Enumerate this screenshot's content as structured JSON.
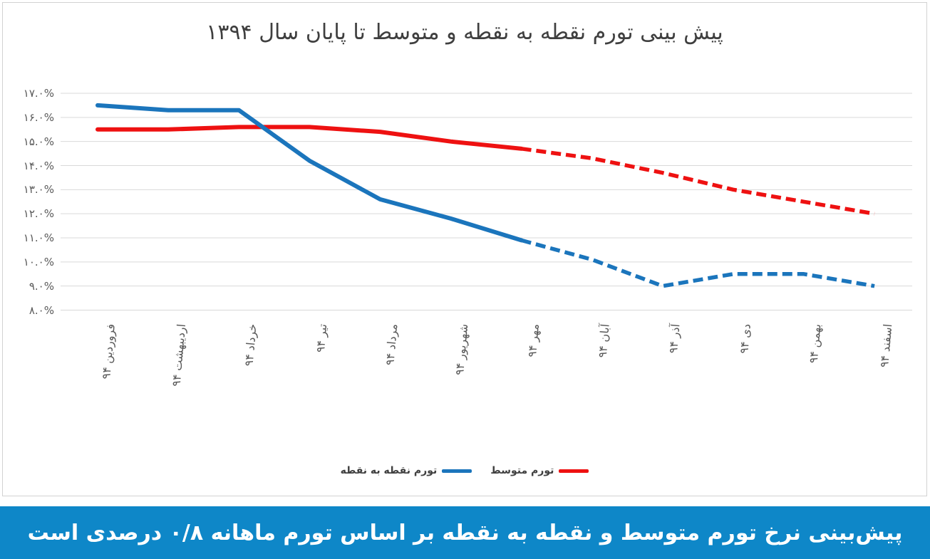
{
  "chart": {
    "title": "پیش بینی تورم نقطه به نقطه و متوسط تا پایان سال ۱۳۹۴",
    "title_color": "#3f3f3f",
    "border_color": "#d2d2d2",
    "background": "#ffffff"
  },
  "chart_data": {
    "type": "line",
    "title": "پیش بینی تورم نقطه به نقطه و متوسط تا پایان سال ۱۳۹۴",
    "categories": [
      "فروردین ۹۴",
      "اردیبهشت ۹۴",
      "خرداد ۹۴",
      "تیر ۹۴",
      "مرداد ۹۴",
      "شهریور ۹۴",
      "مهر ۹۴",
      "آبان ۹۴",
      "آذر ۹۴",
      "دی ۹۴",
      "بهمن ۹۴",
      "اسفند ۹۴"
    ],
    "series": [
      {
        "name": "تورم نقطه به نقطه",
        "color": "#1b75bc",
        "values": [
          16.5,
          16.3,
          16.3,
          14.2,
          12.6,
          11.8,
          10.9,
          10.1,
          9.0,
          9.5,
          9.5,
          9.0
        ],
        "solid_through_index": 6,
        "style_after": "dashed"
      },
      {
        "name": "تورم متوسط",
        "color": "#ee1111",
        "values": [
          15.5,
          15.5,
          15.6,
          15.6,
          15.4,
          15.0,
          14.7,
          14.3,
          13.7,
          13.0,
          12.5,
          12.0
        ],
        "solid_through_index": 6,
        "style_after": "dashed"
      }
    ],
    "ylim": [
      8,
      17
    ],
    "ytick_labels": [
      "۱۷.۰%",
      "۱۶.۰%",
      "۱۵.۰%",
      "۱۴.۰%",
      "۱۳.۰%",
      "۱۲.۰%",
      "۱۱.۰%",
      "۱۰.۰%",
      "۹.۰%",
      "۸.۰%"
    ],
    "grid": "horizontal",
    "gridline_color": "#d9d9d9",
    "axis_label_color": "#595959",
    "legend_position": "bottom"
  },
  "banner": {
    "text": "پیش‌بینی نرخ تورم متوسط و نقطه به نقطه بر اساس تورم ماهانه ۰/۸ درصدی است",
    "background": "#0e87c8",
    "text_color": "#ffffff"
  }
}
